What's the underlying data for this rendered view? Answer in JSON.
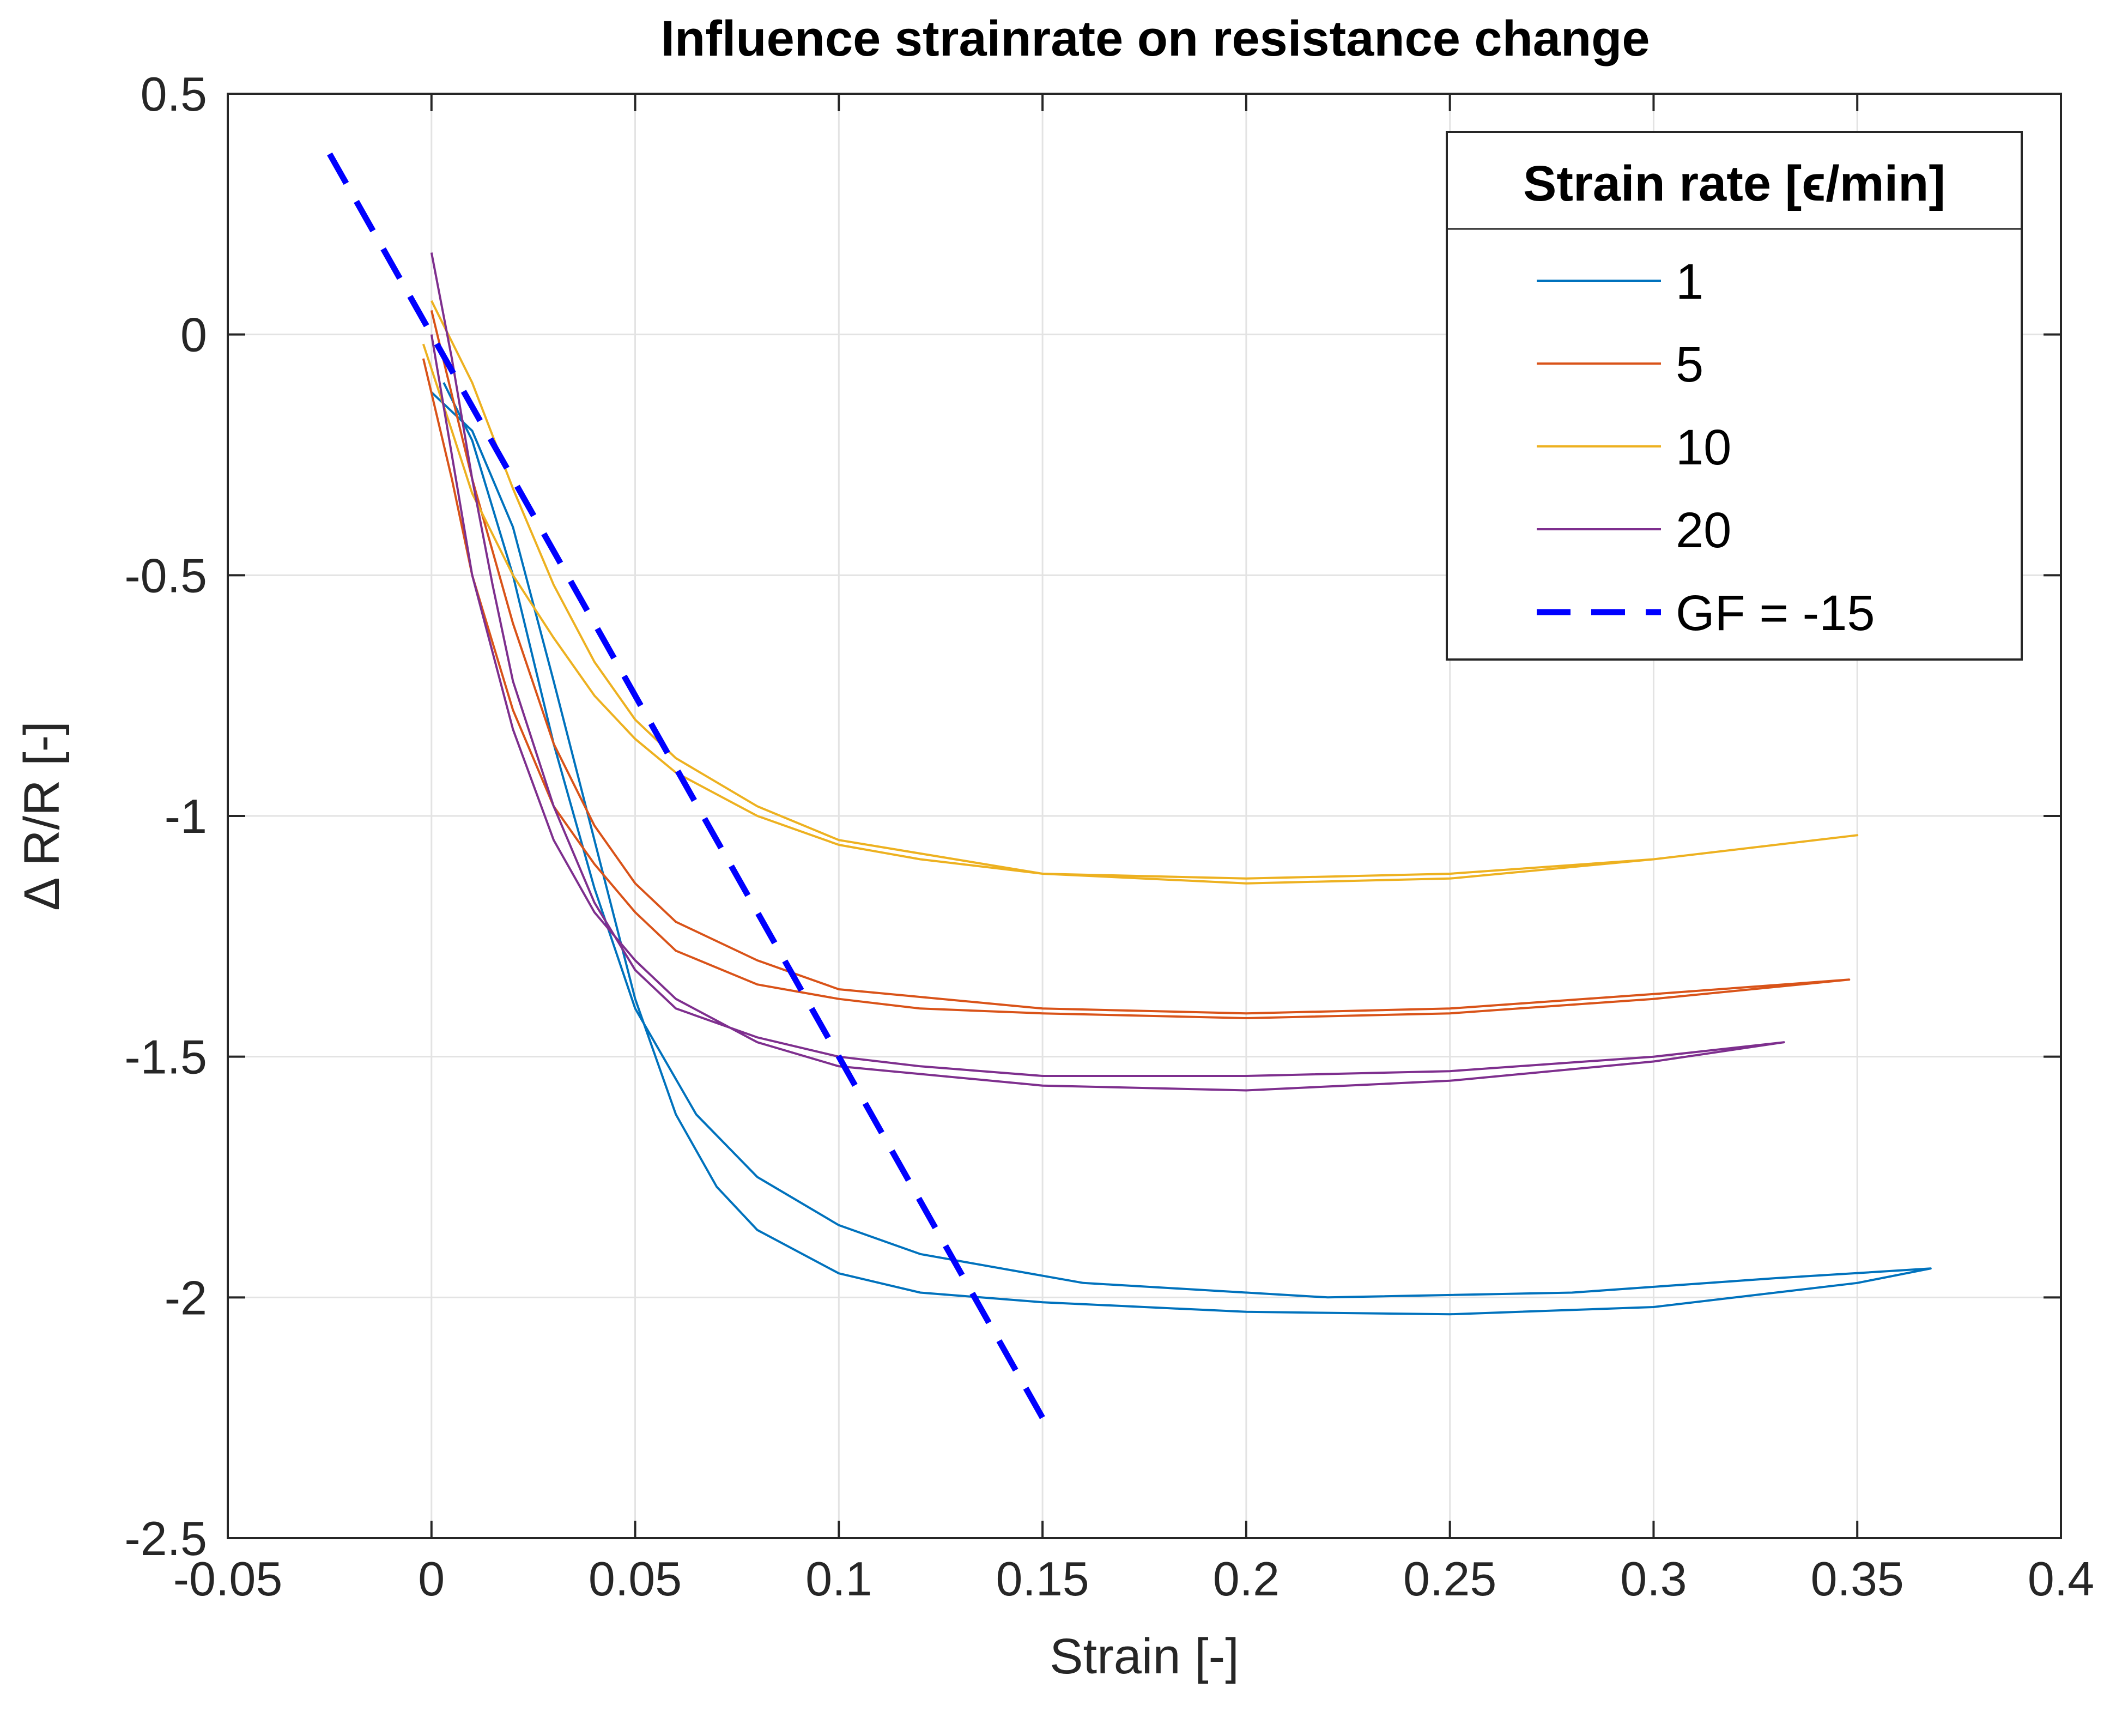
{
  "chart_data": {
    "type": "line",
    "title": "Influence strainrate on resistance change",
    "xlabel": "Strain [-]",
    "ylabel": "Δ R/R [-]",
    "xlim": [
      -0.05,
      0.4
    ],
    "ylim": [
      -2.5,
      0.5
    ],
    "xticks": [
      -0.05,
      0,
      0.05,
      0.1,
      0.15,
      0.2,
      0.25,
      0.3,
      0.35,
      0.4
    ],
    "yticks": [
      0.5,
      0,
      -0.5,
      -1,
      -1.5,
      -2,
      -2.5
    ],
    "xtick_labels": [
      "-0.05",
      "0",
      "0.05",
      "0.1",
      "0.15",
      "0.2",
      "0.25",
      "0.3",
      "0.35",
      "0.4"
    ],
    "ytick_labels": [
      "0.5",
      "0",
      "-0.5",
      "-1",
      "-1.5",
      "-2",
      "-2.5"
    ],
    "grid": true,
    "legend": {
      "title": "Strain rate [ϵ/min]",
      "placement": "top-right"
    },
    "series": [
      {
        "name": "1",
        "color": "#0072BD",
        "dashed": false,
        "x": [
          0.0,
          0.01,
          0.02,
          0.03,
          0.04,
          0.05,
          0.06,
          0.07,
          0.08,
          0.1,
          0.12,
          0.15,
          0.2,
          0.25,
          0.3,
          0.35,
          0.368,
          0.33,
          0.28,
          0.22,
          0.16,
          0.12,
          0.1,
          0.08,
          0.065,
          0.05,
          0.04,
          0.03,
          0.02,
          0.01,
          0.003
        ],
        "y": [
          -0.12,
          -0.2,
          -0.4,
          -0.72,
          -1.05,
          -1.38,
          -1.62,
          -1.77,
          -1.86,
          -1.95,
          -1.99,
          -2.01,
          -2.03,
          -2.035,
          -2.02,
          -1.97,
          -1.94,
          -1.96,
          -1.99,
          -2.0,
          -1.97,
          -1.91,
          -1.85,
          -1.75,
          -1.62,
          -1.4,
          -1.15,
          -0.85,
          -0.5,
          -0.22,
          -0.1
        ]
      },
      {
        "name": "5",
        "color": "#D95319",
        "dashed": false,
        "x": [
          -0.002,
          0.005,
          0.01,
          0.02,
          0.03,
          0.04,
          0.05,
          0.06,
          0.08,
          0.1,
          0.12,
          0.15,
          0.2,
          0.25,
          0.3,
          0.348,
          0.3,
          0.25,
          0.2,
          0.15,
          0.1,
          0.08,
          0.06,
          0.05,
          0.04,
          0.03,
          0.02,
          0.01,
          0.0
        ],
        "y": [
          -0.05,
          -0.3,
          -0.5,
          -0.78,
          -0.98,
          -1.1,
          -1.2,
          -1.28,
          -1.35,
          -1.38,
          -1.4,
          -1.41,
          -1.42,
          -1.41,
          -1.38,
          -1.34,
          -1.37,
          -1.4,
          -1.41,
          -1.4,
          -1.36,
          -1.3,
          -1.22,
          -1.14,
          -1.02,
          -0.85,
          -0.6,
          -0.3,
          0.05
        ]
      },
      {
        "name": "10",
        "color": "#EDB120",
        "dashed": false,
        "x": [
          -0.002,
          0.005,
          0.01,
          0.02,
          0.03,
          0.04,
          0.05,
          0.06,
          0.08,
          0.1,
          0.12,
          0.15,
          0.2,
          0.25,
          0.3,
          0.35,
          0.3,
          0.25,
          0.2,
          0.15,
          0.1,
          0.08,
          0.06,
          0.05,
          0.04,
          0.03,
          0.02,
          0.01,
          0.0
        ],
        "y": [
          -0.02,
          -0.2,
          -0.33,
          -0.5,
          -0.63,
          -0.75,
          -0.84,
          -0.91,
          -1.0,
          -1.06,
          -1.09,
          -1.12,
          -1.13,
          -1.12,
          -1.09,
          -1.04,
          -1.09,
          -1.13,
          -1.14,
          -1.12,
          -1.05,
          -0.98,
          -0.88,
          -0.8,
          -0.68,
          -0.52,
          -0.32,
          -0.1,
          0.07
        ]
      },
      {
        "name": "20",
        "color": "#7E2F8E",
        "dashed": false,
        "x": [
          0.0,
          0.005,
          0.01,
          0.015,
          0.02,
          0.03,
          0.04,
          0.05,
          0.06,
          0.08,
          0.1,
          0.12,
          0.15,
          0.2,
          0.25,
          0.3,
          0.332,
          0.3,
          0.25,
          0.2,
          0.15,
          0.1,
          0.08,
          0.06,
          0.05,
          0.04,
          0.03,
          0.02,
          0.01,
          0.0
        ],
        "y": [
          0.17,
          -0.05,
          -0.3,
          -0.52,
          -0.72,
          -0.98,
          -1.18,
          -1.32,
          -1.4,
          -1.46,
          -1.5,
          -1.52,
          -1.54,
          -1.54,
          -1.53,
          -1.5,
          -1.47,
          -1.51,
          -1.55,
          -1.57,
          -1.56,
          -1.52,
          -1.47,
          -1.38,
          -1.3,
          -1.2,
          -1.05,
          -0.82,
          -0.5,
          0.0
        ]
      },
      {
        "name": "GF = -15",
        "color": "#0000FF",
        "dashed": true,
        "x": [
          -0.025,
          0.15
        ],
        "y": [
          0.375,
          -2.25
        ]
      }
    ]
  }
}
